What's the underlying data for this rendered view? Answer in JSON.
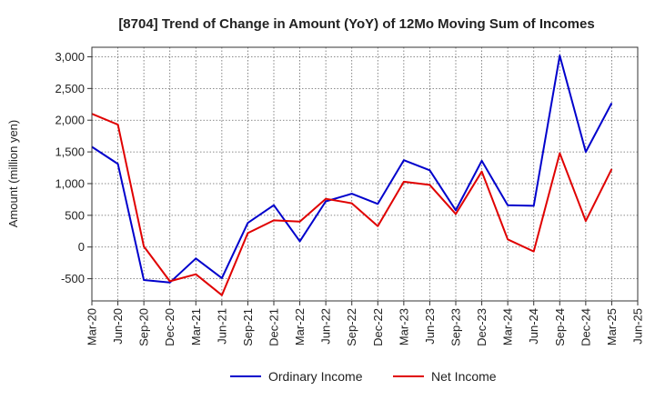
{
  "chart_data": {
    "type": "line",
    "title": "[8704]  Trend of Change in Amount (YoY) of 12Mo Moving Sum of Incomes",
    "ylabel": "Amount (million yen)",
    "xlabel": "",
    "ylim": [
      -850,
      3150
    ],
    "yticks": [
      -500,
      0,
      500,
      1000,
      1500,
      2000,
      2500,
      3000
    ],
    "ytick_labels": [
      "-500",
      "0",
      "500",
      "1,000",
      "1,500",
      "2,000",
      "2,500",
      "3,000"
    ],
    "categories": [
      "Mar-20",
      "Jun-20",
      "Sep-20",
      "Dec-20",
      "Mar-21",
      "Jun-21",
      "Sep-21",
      "Dec-21",
      "Mar-22",
      "Jun-22",
      "Sep-22",
      "Dec-22",
      "Mar-23",
      "Jun-23",
      "Sep-23",
      "Dec-23",
      "Mar-24",
      "Jun-24",
      "Sep-24",
      "Dec-24",
      "Mar-25",
      "Jun-25"
    ],
    "grid": true,
    "legend_position": "bottom",
    "series": [
      {
        "name": "Ordinary Income",
        "color": "#0000cc",
        "values": [
          1580,
          1310,
          -520,
          -560,
          -180,
          -490,
          380,
          660,
          90,
          720,
          840,
          680,
          1370,
          1210,
          580,
          1360,
          660,
          650,
          3020,
          1500,
          2270,
          null
        ]
      },
      {
        "name": "Net Income",
        "color": "#e00000",
        "values": [
          2100,
          1930,
          10,
          -540,
          -430,
          -760,
          220,
          420,
          400,
          760,
          690,
          330,
          1030,
          980,
          520,
          1190,
          120,
          -70,
          1480,
          410,
          1230,
          null
        ]
      }
    ]
  }
}
